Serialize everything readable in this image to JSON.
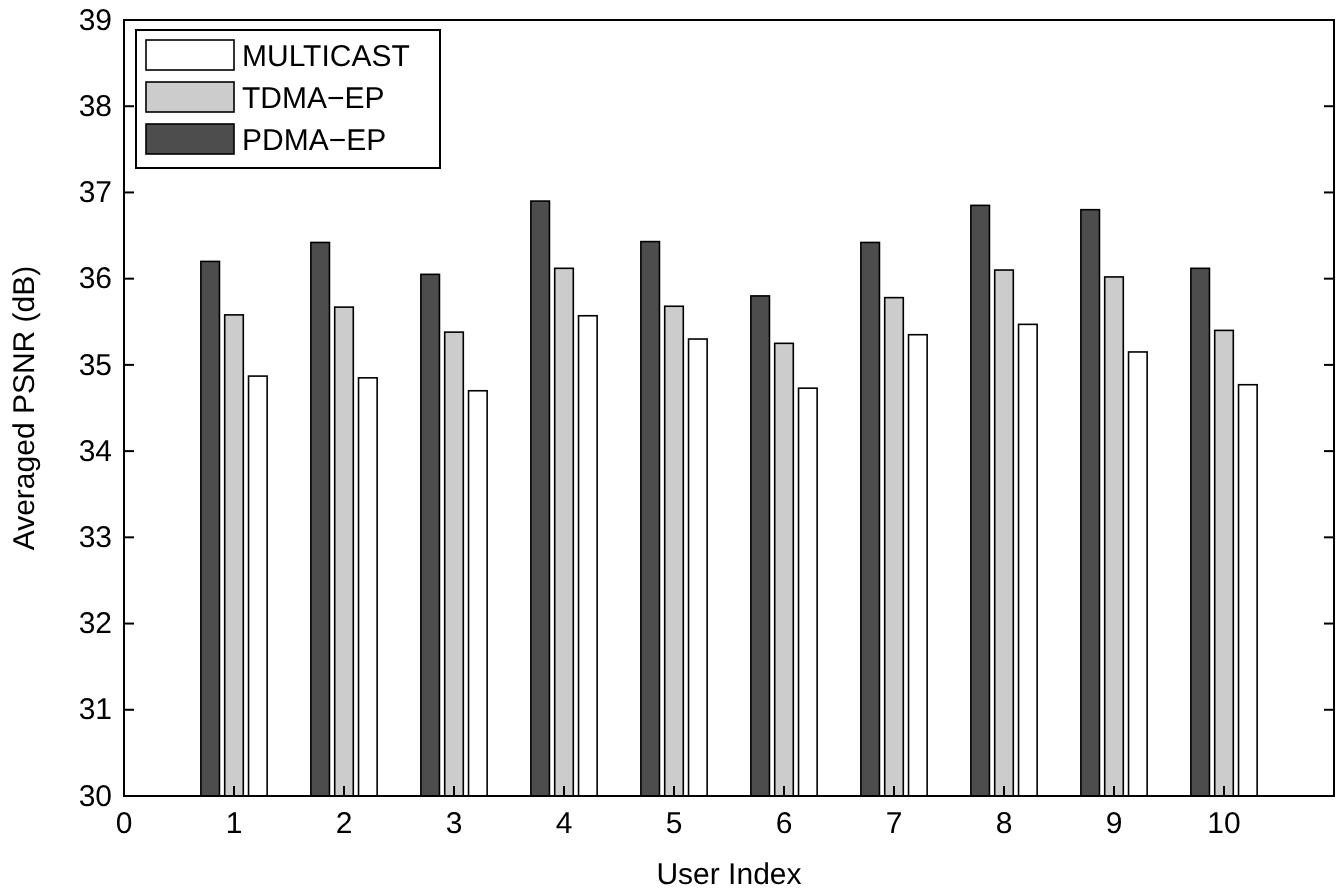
{
  "chart_data": {
    "type": "bar",
    "xlabel": "User Index",
    "ylabel": "Averaged PSNR (dB)",
    "x": [
      1,
      2,
      3,
      4,
      5,
      6,
      7,
      8,
      9,
      10
    ],
    "series": [
      {
        "name": "PDMA−EP",
        "color": "#4d4d4d",
        "values": [
          36.2,
          36.42,
          36.05,
          36.9,
          36.43,
          35.8,
          36.42,
          36.85,
          36.8,
          36.12
        ]
      },
      {
        "name": "TDMA−EP",
        "color": "#cccccc",
        "values": [
          35.58,
          35.67,
          35.38,
          36.12,
          35.68,
          35.25,
          35.78,
          36.1,
          36.02,
          35.4
        ]
      },
      {
        "name": "MULTICAST",
        "color": "#ffffff",
        "values": [
          34.87,
          34.85,
          34.7,
          35.57,
          35.3,
          34.73,
          35.35,
          35.47,
          35.15,
          34.77
        ]
      }
    ],
    "xlim": [
      0,
      11
    ],
    "xticks": [
      0,
      1,
      2,
      3,
      4,
      5,
      6,
      7,
      8,
      9,
      10
    ],
    "ylim": [
      30,
      39
    ],
    "yticks": [
      30,
      31,
      32,
      33,
      34,
      35,
      36,
      37,
      38,
      39
    ],
    "legend": "top left"
  }
}
